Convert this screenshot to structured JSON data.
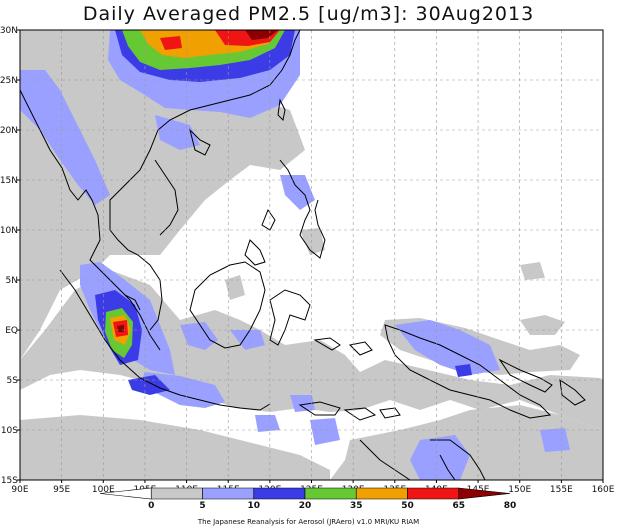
{
  "title": "Daily Averaged PM2.5 [ug/m3]: 30Aug2013",
  "credit": "The Japanese Reanalysis for Aerosol (JRAero) v1.0 MRI/KU RIAM",
  "map": {
    "lon_range": [
      90,
      160
    ],
    "lat_range": [
      -15,
      30
    ],
    "lon_labels": [
      "90E",
      "95E",
      "100E",
      "105E",
      "110E",
      "115E",
      "120E",
      "125E",
      "130E",
      "135E",
      "140E",
      "145E",
      "150E",
      "155E",
      "160E"
    ],
    "lat_labels": [
      "15S",
      "10S",
      "5S",
      "EQ",
      "5N",
      "10N",
      "15N",
      "20N",
      "25N",
      "30N"
    ]
  },
  "colorbar": {
    "levels": [
      "0",
      "5",
      "10",
      "20",
      "35",
      "50",
      "65",
      "80"
    ],
    "colors": [
      "#ffffff",
      "#c8c8c8",
      "#9aa0ff",
      "#3c3ce6",
      "#66c832",
      "#f0a000",
      "#f01414",
      "#8c0000"
    ]
  }
}
